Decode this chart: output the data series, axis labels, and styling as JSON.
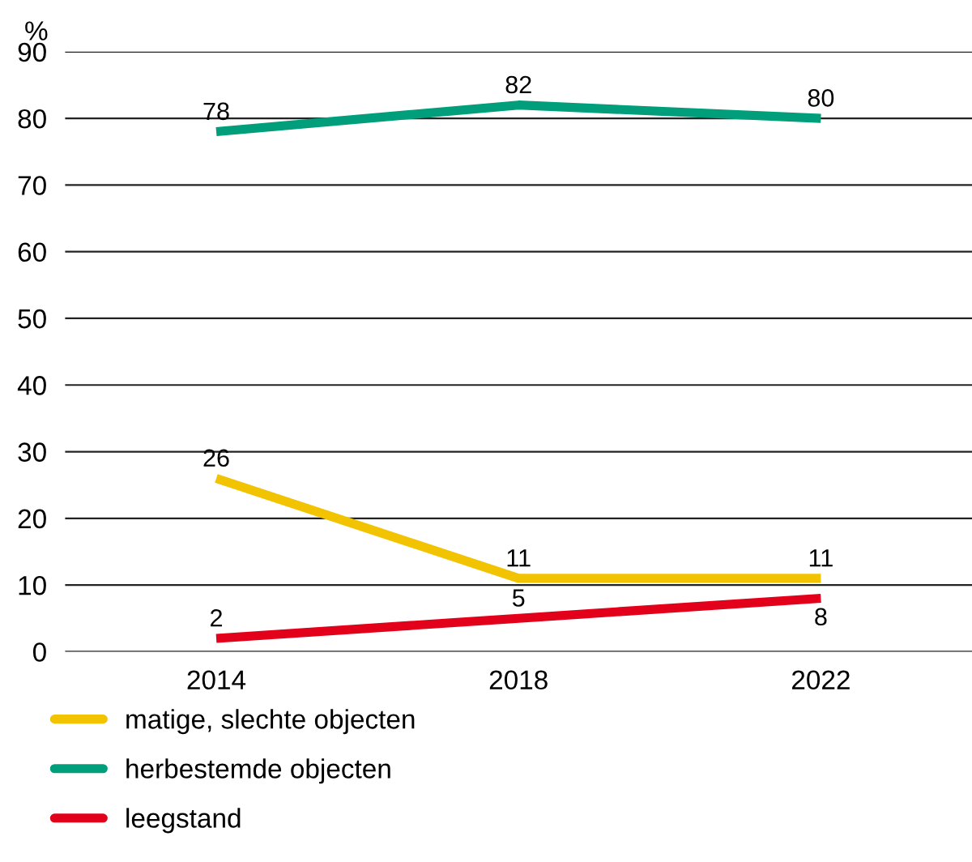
{
  "chart_data": {
    "type": "line",
    "ylabel": "%",
    "categories": [
      "2014",
      "2018",
      "2022"
    ],
    "series": [
      {
        "name": "matige, slechte objecten",
        "color": "#f2c300",
        "values": [
          26,
          11,
          11
        ]
      },
      {
        "name": "herbestemde objecten",
        "color": "#009e7a",
        "values": [
          78,
          82,
          80
        ]
      },
      {
        "name": "leegstand",
        "color": "#e2001a",
        "values": [
          2,
          5,
          8
        ]
      }
    ],
    "ylim": [
      0,
      90
    ],
    "yticks": [
      0,
      10,
      20,
      30,
      40,
      50,
      60,
      70,
      80,
      90
    ],
    "grid": "y",
    "legend": "bottom",
    "data_labels": true,
    "marker": "none",
    "line_style": "solid"
  }
}
